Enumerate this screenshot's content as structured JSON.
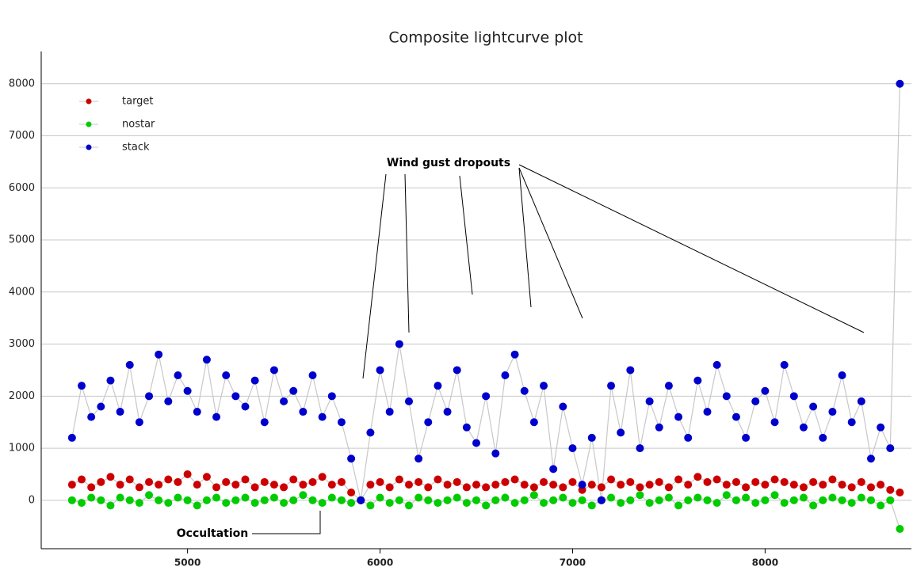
{
  "chart_data": {
    "type": "scatter-line",
    "title": "Composite lightcurve plot",
    "x": [
      4400,
      4450,
      4500,
      4550,
      4600,
      4650,
      4700,
      4750,
      4800,
      4850,
      4900,
      4950,
      5000,
      5050,
      5100,
      5150,
      5200,
      5250,
      5300,
      5350,
      5400,
      5450,
      5500,
      5550,
      5600,
      5650,
      5700,
      5750,
      5800,
      5850,
      5900,
      5950,
      6000,
      6050,
      6100,
      6150,
      6200,
      6250,
      6300,
      6350,
      6400,
      6450,
      6500,
      6550,
      6600,
      6650,
      6700,
      6750,
      6800,
      6850,
      6900,
      6950,
      7000,
      7050,
      7100,
      7150,
      7200,
      7250,
      7300,
      7350,
      7400,
      7450,
      7500,
      7550,
      7600,
      7650,
      7700,
      7750,
      7800,
      7850,
      7900,
      7950,
      8000,
      8050,
      8100,
      8150,
      8200,
      8250,
      8300,
      8350,
      8400,
      8450,
      8500,
      8550,
      8600,
      8650,
      8700
    ],
    "series": [
      {
        "name": "target",
        "color": "#cc0000",
        "values": [
          300,
          400,
          250,
          350,
          450,
          300,
          400,
          250,
          350,
          300,
          400,
          350,
          500,
          300,
          450,
          250,
          350,
          300,
          400,
          250,
          350,
          300,
          250,
          400,
          300,
          350,
          450,
          300,
          350,
          150,
          0,
          300,
          350,
          250,
          400,
          300,
          350,
          250,
          400,
          300,
          350,
          250,
          300,
          250,
          300,
          350,
          400,
          300,
          250,
          350,
          300,
          250,
          350,
          200,
          300,
          250,
          400,
          300,
          350,
          250,
          300,
          350,
          250,
          400,
          300,
          450,
          350,
          400,
          300,
          350,
          250,
          350,
          300,
          400,
          350,
          300,
          250,
          350,
          300,
          400,
          300,
          250,
          350,
          250,
          300,
          200,
          150
        ]
      },
      {
        "name": "nostar",
        "color": "#00cc00",
        "values": [
          0,
          -50,
          50,
          0,
          -100,
          50,
          0,
          -50,
          100,
          0,
          -50,
          50,
          0,
          -100,
          0,
          50,
          -50,
          0,
          50,
          -50,
          0,
          50,
          -50,
          0,
          100,
          0,
          -50,
          50,
          0,
          -50,
          0,
          -100,
          50,
          -50,
          0,
          -100,
          50,
          0,
          -50,
          0,
          50,
          -50,
          0,
          -100,
          0,
          50,
          -50,
          0,
          100,
          -50,
          0,
          50,
          -50,
          0,
          -100,
          0,
          50,
          -50,
          0,
          100,
          -50,
          0,
          50,
          -100,
          0,
          50,
          0,
          -50,
          100,
          0,
          50,
          -50,
          0,
          100,
          -50,
          0,
          50,
          -100,
          0,
          50,
          0,
          -50,
          50,
          0,
          -100,
          0,
          -550
        ]
      },
      {
        "name": "stack",
        "color": "#0000cc",
        "values": [
          1200,
          2200,
          1600,
          1800,
          2300,
          1700,
          2600,
          1500,
          2000,
          2800,
          1900,
          2400,
          2100,
          1700,
          2700,
          1600,
          2400,
          2000,
          1800,
          2300,
          1500,
          2500,
          1900,
          2100,
          1700,
          2400,
          1600,
          2000,
          1500,
          800,
          0,
          1300,
          2500,
          1700,
          3000,
          1900,
          800,
          1500,
          2200,
          1700,
          2500,
          1400,
          1100,
          2000,
          900,
          2400,
          2800,
          2100,
          1500,
          2200,
          600,
          1800,
          1000,
          300,
          1200,
          0,
          2200,
          1300,
          2500,
          1000,
          1900,
          1400,
          2200,
          1600,
          1200,
          2300,
          1700,
          2600,
          2000,
          1600,
          1200,
          1900,
          2100,
          1500,
          2600,
          2000,
          1400,
          1800,
          1200,
          1700,
          2400,
          1500,
          1900,
          800,
          1400,
          1000,
          8000
        ]
      }
    ],
    "xlim": [
      4240,
      8760
    ],
    "xticks": [
      5000,
      6000,
      7000,
      8000
    ],
    "ylim": [
      -930,
      8620
    ],
    "yticks": [
      0,
      1000,
      2000,
      3000,
      4000,
      5000,
      6000,
      7000,
      8000
    ],
    "grid": true,
    "legend": "upper left",
    "annotations": [
      "Wind gust dropouts",
      "Occultation"
    ]
  }
}
